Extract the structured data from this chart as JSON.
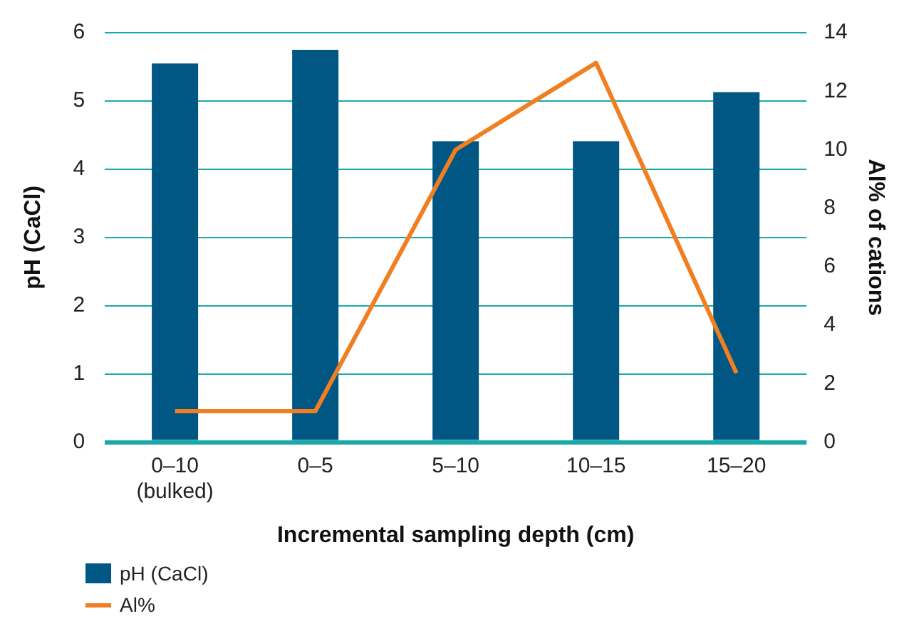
{
  "chart_data": {
    "type": "bar",
    "xlabel": "Incremental sampling depth (cm)",
    "ylabel": "pH (CaCl)",
    "y2label": "Al% of cations",
    "categories": [
      "0–10 (bulked)",
      "0–5",
      "5–10",
      "10–15",
      "15–20"
    ],
    "series": [
      {
        "name": "pH (CaCl)",
        "color": "#005783",
        "values": [
          5.55,
          5.75,
          4.41,
          4.41,
          5.13
        ]
      },
      {
        "name": "Al%",
        "type": "line",
        "axis": "y2",
        "color": "#f07f22",
        "values": [
          1.06,
          1.06,
          10.0,
          12.97,
          2.36
        ]
      }
    ],
    "ylim": [
      0,
      6
    ],
    "yticks": [
      0,
      1,
      2,
      3,
      4,
      5,
      6
    ],
    "y2lim": [
      0,
      14
    ],
    "y2ticks": [
      0,
      2,
      4,
      6,
      8,
      10,
      12,
      14
    ],
    "grid": "y",
    "legend": "bottom left",
    "marker": "none",
    "line_style": "solid"
  }
}
